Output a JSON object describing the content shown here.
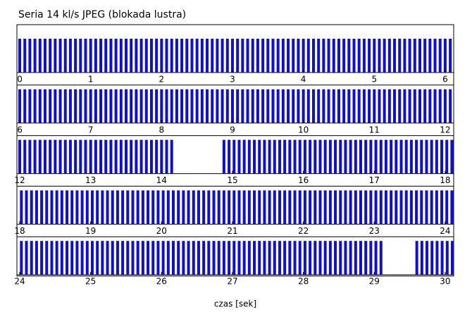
{
  "chart_data": {
    "type": "burst-timeline",
    "title": "Seria 14 kl/s JPEG (blokada lustra)",
    "x_label": "czas [sek]",
    "fps": 14,
    "color": "#1010cc",
    "bursts": [
      {
        "start": 0,
        "end": 14.2
      },
      {
        "start": 14.88,
        "end": 29.1
      },
      {
        "start": 29.6,
        "end": 30.1
      }
    ],
    "panels": [
      {
        "xlim": [
          -0.04,
          6.12
        ]
      },
      {
        "xlim": [
          5.96,
          12.12
        ]
      },
      {
        "xlim": [
          11.96,
          18.12
        ]
      },
      {
        "xlim": [
          17.96,
          24.12
        ]
      },
      {
        "xlim": [
          23.96,
          30.12
        ]
      }
    ],
    "xticks": [
      0,
      1,
      2,
      3,
      4,
      5,
      6,
      7,
      8,
      9,
      10,
      11,
      12,
      13,
      14,
      15,
      16,
      17,
      18,
      19,
      20,
      21,
      22,
      23,
      24,
      25,
      26,
      27,
      28,
      29,
      30
    ]
  }
}
